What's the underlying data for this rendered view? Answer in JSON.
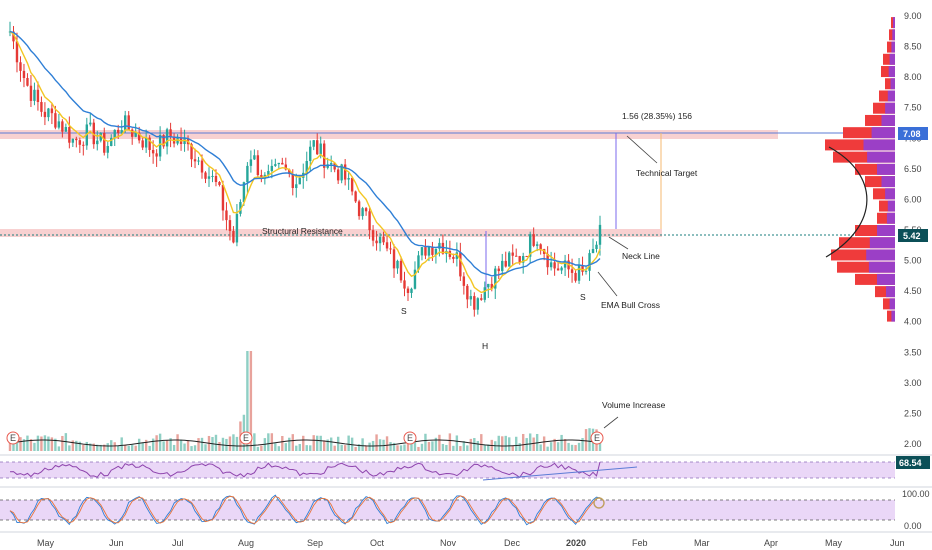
{
  "chart_data": {
    "type": "candlestick",
    "symbol_note": "",
    "x_months": [
      "May",
      "Jun",
      "Jul",
      "Aug",
      "Sep",
      "Oct",
      "Nov",
      "Dec",
      "2020",
      "Feb",
      "Mar",
      "Apr",
      "May",
      "Jun"
    ],
    "price_axis": {
      "ticks": [
        "9.00",
        "8.50",
        "8.00",
        "7.50",
        "7.00",
        "6.50",
        "6.00",
        "5.50",
        "5.00",
        "4.50",
        "4.00",
        "3.50",
        "3.00",
        "2.50",
        "2.00"
      ],
      "min": 2.0,
      "max": 9.0
    },
    "last_price_badge": "5.42",
    "target_badge": "7.08",
    "measure_label": "1.56 (28.35%) 156",
    "annotations": {
      "structural_resistance": "Structural Resistance",
      "technical_target": "Technical Target",
      "neck_line": "Neck Line",
      "ema_bull_cross": "EMA Bull Cross",
      "volume_increase": "Volume Increase",
      "shoulder_left": "S",
      "head": "H",
      "shoulder_right": "S"
    },
    "earnings_marker": "E",
    "rsi_badge": "68.54",
    "stoch_ticks": [
      "100.00",
      "0.00"
    ],
    "price_path": [
      {
        "x": "Apr 25",
        "y": 8.75
      },
      {
        "x": "May 3",
        "y": 7.9
      },
      {
        "x": "May 10",
        "y": 7.45
      },
      {
        "x": "May 17",
        "y": 7.3
      },
      {
        "x": "May 24",
        "y": 6.95
      },
      {
        "x": "May 31",
        "y": 7.1
      },
      {
        "x": "Jun 7",
        "y": 6.85
      },
      {
        "x": "Jun 14",
        "y": 7.25
      },
      {
        "x": "Jun 21",
        "y": 7.05
      },
      {
        "x": "Jun 28",
        "y": 6.8
      },
      {
        "x": "Jul 5",
        "y": 7.05
      },
      {
        "x": "Jul 12",
        "y": 6.9
      },
      {
        "x": "Jul 19",
        "y": 6.6
      },
      {
        "x": "Jul 26",
        "y": 6.2
      },
      {
        "x": "Aug 2",
        "y": 5.3
      },
      {
        "x": "Aug 9",
        "y": 6.8
      },
      {
        "x": "Aug 16",
        "y": 6.3
      },
      {
        "x": "Aug 23",
        "y": 6.5
      },
      {
        "x": "Aug 30",
        "y": 6.3
      },
      {
        "x": "Sep 6",
        "y": 6.9
      },
      {
        "x": "Sep 13",
        "y": 6.6
      },
      {
        "x": "Sep 20",
        "y": 6.35
      },
      {
        "x": "Sep 27",
        "y": 5.8
      },
      {
        "x": "Oct 4",
        "y": 5.4
      },
      {
        "x": "Oct 11",
        "y": 5.0
      },
      {
        "x": "Oct 18",
        "y": 4.6
      },
      {
        "x": "Oct 25",
        "y": 5.2
      },
      {
        "x": "Nov 1",
        "y": 5.3
      },
      {
        "x": "Nov 8",
        "y": 5.05
      },
      {
        "x": "Nov 15",
        "y": 4.3
      },
      {
        "x": "Nov 22",
        "y": 4.65
      },
      {
        "x": "Nov 29",
        "y": 4.95
      },
      {
        "x": "Dec 6",
        "y": 5.05
      },
      {
        "x": "Dec 13",
        "y": 5.45
      },
      {
        "x": "Dec 20",
        "y": 4.9
      },
      {
        "x": "Dec 27",
        "y": 4.85
      },
      {
        "x": "Jan 3",
        "y": 4.75
      },
      {
        "x": "Jan 10",
        "y": 5.42
      }
    ]
  }
}
